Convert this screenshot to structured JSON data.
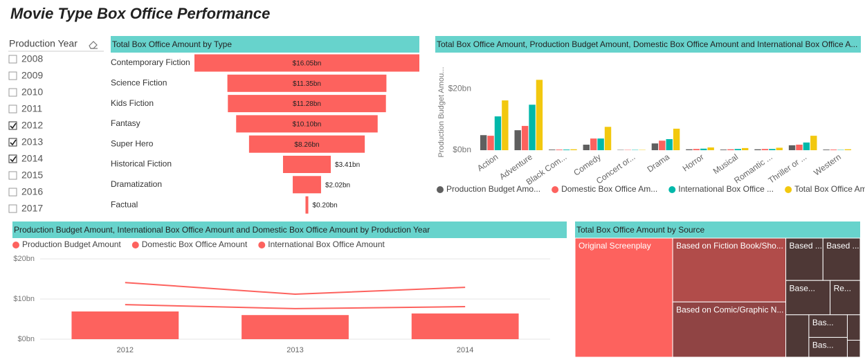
{
  "title": "Movie Type Box Office Performance",
  "slicer": {
    "title": "Production Year",
    "items": [
      {
        "label": "2008",
        "checked": false
      },
      {
        "label": "2009",
        "checked": false
      },
      {
        "label": "2010",
        "checked": false
      },
      {
        "label": "2011",
        "checked": false
      },
      {
        "label": "2012",
        "checked": true
      },
      {
        "label": "2013",
        "checked": true
      },
      {
        "label": "2014",
        "checked": true
      },
      {
        "label": "2015",
        "checked": false
      },
      {
        "label": "2016",
        "checked": false
      },
      {
        "label": "2017",
        "checked": false
      }
    ]
  },
  "chart_data": [
    {
      "type": "funnel",
      "title": "Total Box Office Amount by Type",
      "categories": [
        "Contemporary Fiction",
        "Science Fiction",
        "Kids Fiction",
        "Fantasy",
        "Super Hero",
        "Historical Fiction",
        "Dramatization",
        "Factual"
      ],
      "values": [
        16.05,
        11.35,
        11.28,
        10.1,
        8.26,
        3.41,
        2.02,
        0.2
      ],
      "value_labels": [
        "$16.05bn",
        "$11.35bn",
        "$11.28bn",
        "$10.10bn",
        "$8.26bn",
        "$3.41bn",
        "$2.02bn",
        "$0.20bn"
      ],
      "color": "#fd625e"
    },
    {
      "type": "bar",
      "title": "Total Box Office Amount, Production Budget Amount, Domestic Box Office Amount and International Box Office A...",
      "y_label": "Production Budget Amou...",
      "categories": [
        "Action",
        "Adventure",
        "Black Com...",
        "Comedy",
        "Concert or...",
        "Drama",
        "Horror",
        "Musical",
        "Romantic ...",
        "Thriller or ...",
        "Western"
      ],
      "series": [
        {
          "name": "Production Budget Amo...",
          "color": "#5f5f5f",
          "values": [
            4.9,
            6.5,
            0.2,
            1.8,
            0.1,
            2.2,
            0.3,
            0.2,
            0.3,
            1.6,
            0.2
          ]
        },
        {
          "name": "Domestic Box Office Am...",
          "color": "#fd625e",
          "values": [
            4.7,
            7.9,
            0.2,
            3.8,
            0.1,
            3.1,
            0.4,
            0.3,
            0.4,
            1.8,
            0.2
          ]
        },
        {
          "name": "International Box Office ...",
          "color": "#01b8aa",
          "values": [
            11.0,
            14.8,
            0.2,
            3.8,
            0.1,
            3.6,
            0.5,
            0.4,
            0.4,
            2.5,
            0.1
          ]
        },
        {
          "name": "Total Box Office Amount",
          "color": "#f2c80f",
          "values": [
            16.2,
            22.9,
            0.3,
            7.6,
            0.1,
            7.0,
            0.9,
            0.7,
            0.8,
            4.7,
            0.3
          ]
        }
      ],
      "ylim": [
        0,
        25
      ],
      "yticks": [
        {
          "value": 0,
          "label": "$0bn"
        },
        {
          "value": 20,
          "label": "$20bn"
        }
      ]
    },
    {
      "type": "combo",
      "title": "Production Budget Amount, International Box Office Amount and Domestic Box Office Amount by Production Year",
      "categories": [
        "2012",
        "2013",
        "2014"
      ],
      "series": [
        {
          "name": "Production Budget Amount",
          "color": "#fd625e",
          "kind": "bar",
          "values": [
            6.9,
            6.0,
            6.4
          ]
        },
        {
          "name": "Domestic Box Office Amount",
          "color": "#fd625e",
          "kind": "line",
          "values": [
            8.6,
            7.6,
            8.1
          ]
        },
        {
          "name": "International Box Office Amount",
          "color": "#fd625e",
          "kind": "line",
          "values": [
            14.1,
            11.2,
            12.9
          ]
        }
      ],
      "ylim": [
        0,
        20
      ],
      "yticks": [
        {
          "value": 0,
          "label": "$0bn"
        },
        {
          "value": 10,
          "label": "$10bn"
        },
        {
          "value": 20,
          "label": "$20bn"
        }
      ],
      "grid": true
    },
    {
      "type": "treemap",
      "title": "Total Box Office Amount by Source",
      "categories": [
        "Original Screenplay",
        "Based on Fiction Book/Sho...",
        "Based on Comic/Graphic N...",
        "Based ...",
        "Based ...",
        "Base...",
        "Re...",
        null,
        "Bas...",
        "Bas...",
        null,
        null
      ],
      "values": [
        21.4,
        13.3,
        11.5,
        2.9,
        2.9,
        2.8,
        1.9,
        1.8,
        1.6,
        1.4,
        0.6,
        0.4
      ],
      "colors": [
        "#fd625e",
        "#b14c4a",
        "#904444",
        "#4e3836",
        "#4e3836",
        "#4e3836",
        "#4e3836",
        "#4e3836",
        "#4e3836",
        "#4e3836",
        "#4e3836",
        "#4e3836"
      ]
    }
  ]
}
